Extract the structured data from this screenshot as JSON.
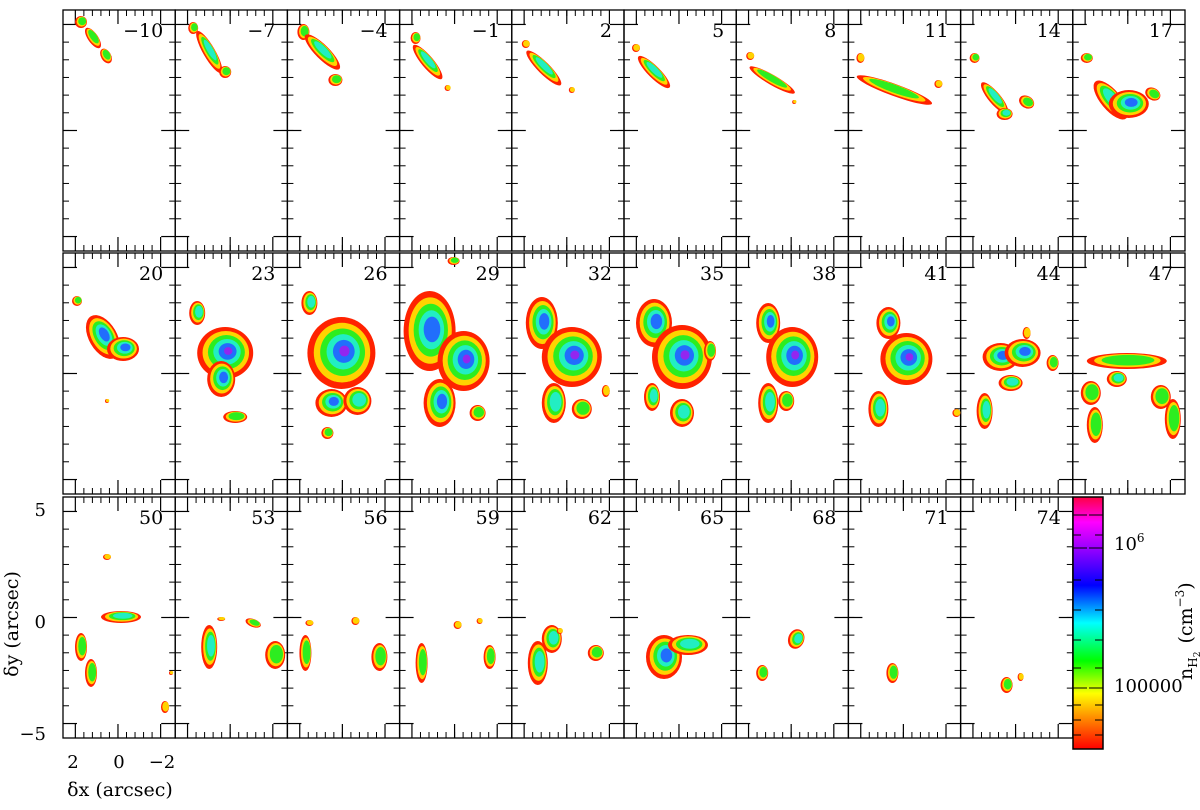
{
  "panels": [
    {
      "label": "−10"
    },
    {
      "label": "−7"
    },
    {
      "label": "−4"
    },
    {
      "label": "−1"
    },
    {
      "label": "2"
    },
    {
      "label": "5"
    },
    {
      "label": "8"
    },
    {
      "label": "11"
    },
    {
      "label": "14"
    },
    {
      "label": "17"
    },
    {
      "label": "20"
    },
    {
      "label": "23"
    },
    {
      "label": "26"
    },
    {
      "label": "29"
    },
    {
      "label": "32"
    },
    {
      "label": "35"
    },
    {
      "label": "38"
    },
    {
      "label": "41"
    },
    {
      "label": "44"
    },
    {
      "label": "47"
    },
    {
      "label": "50"
    },
    {
      "label": "53"
    },
    {
      "label": "56"
    },
    {
      "label": "59"
    },
    {
      "label": "62"
    },
    {
      "label": "65"
    },
    {
      "label": "68"
    },
    {
      "label": "71"
    },
    {
      "label": "74"
    }
  ],
  "axes": {
    "ylabel": "δy (arcsec)",
    "xlabel": "δx (arcsec)",
    "yticks": [
      "5",
      "0",
      "−5"
    ],
    "xticks": [
      "2",
      "0",
      "−2"
    ]
  },
  "colorbar": {
    "label_main": "n",
    "label_sub": "H",
    "label_subsub": "2",
    "label_units": "(cm",
    "label_exp": "−3",
    "label_close": ")",
    "tick_high": "10",
    "tick_high_exp": "6",
    "tick_low": "100000",
    "colors": [
      "#ff0000",
      "#ff8800",
      "#ffff00",
      "#00ff00",
      "#00ffff",
      "#0000ff",
      "#8800ff",
      "#ff00ff",
      "#ff0044"
    ]
  }
}
